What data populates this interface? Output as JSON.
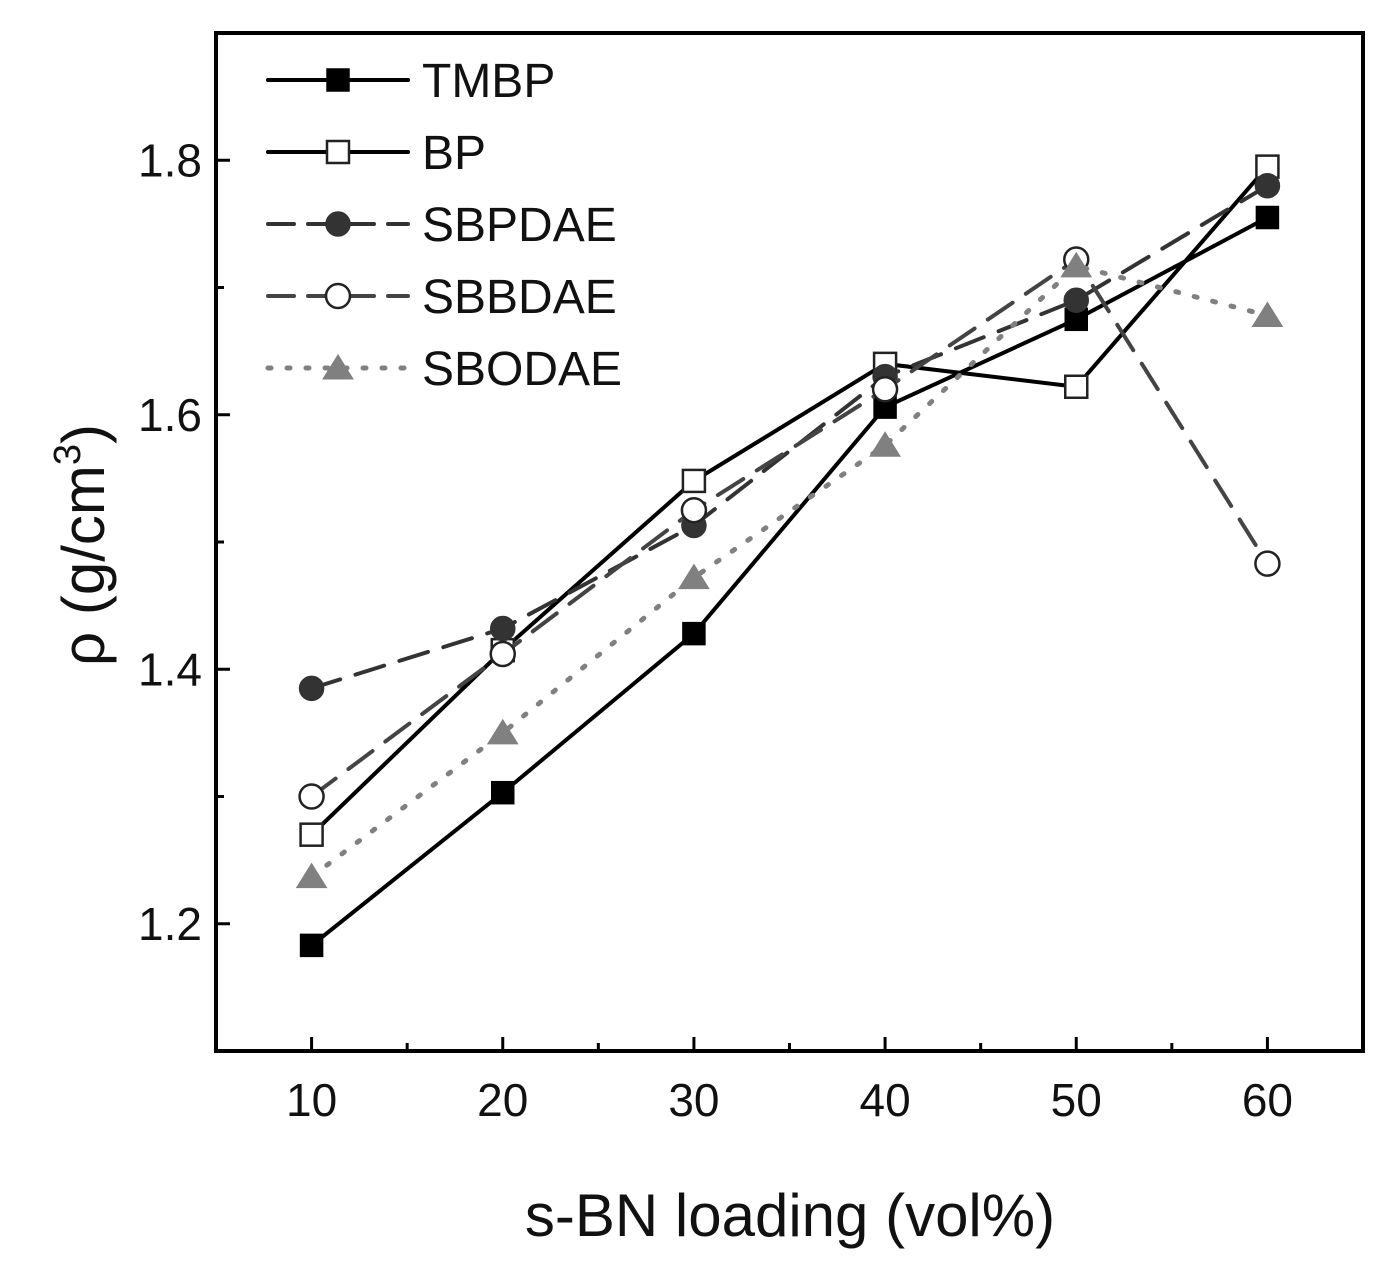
{
  "chart_data": {
    "type": "line",
    "title": "",
    "xlabel": "s-BN loading (vol%)",
    "ylabel_symbol": "ρ",
    "ylabel_unit_prefix": "(g/cm",
    "ylabel_unit_exponent": "3",
    "ylabel_unit_suffix": ")",
    "x": [
      10,
      20,
      30,
      40,
      50,
      60
    ],
    "xlim": [
      5,
      65
    ],
    "ylim": [
      1.1,
      1.9
    ],
    "xticks": [
      "10",
      "20",
      "30",
      "40",
      "50",
      "60"
    ],
    "yticks": [
      "1.2",
      "1.4",
      "1.6",
      "1.8"
    ],
    "legend_position": "top-left",
    "series": [
      {
        "name": "TMBP",
        "values": [
          1.183,
          1.303,
          1.428,
          1.606,
          1.675,
          1.755
        ],
        "marker": "square-filled",
        "line": "solid",
        "color": "#000000"
      },
      {
        "name": "BP",
        "values": [
          1.27,
          1.415,
          1.548,
          1.64,
          1.622,
          1.795
        ],
        "marker": "square-open",
        "line": "solid",
        "color": "#000000"
      },
      {
        "name": "SBPDAE",
        "values": [
          1.385,
          1.432,
          1.513,
          1.63,
          1.69,
          1.78
        ],
        "marker": "circle-filled",
        "line": "dashed",
        "color": "#333333"
      },
      {
        "name": "SBBDAE",
        "values": [
          1.3,
          1.412,
          1.525,
          1.62,
          1.722,
          1.483
        ],
        "marker": "circle-open",
        "line": "dashed",
        "color": "#444444"
      },
      {
        "name": "SBODAE",
        "values": [
          1.237,
          1.35,
          1.472,
          1.576,
          1.717,
          1.678
        ],
        "marker": "triangle-filled",
        "line": "dotted",
        "color": "#808080"
      }
    ]
  }
}
